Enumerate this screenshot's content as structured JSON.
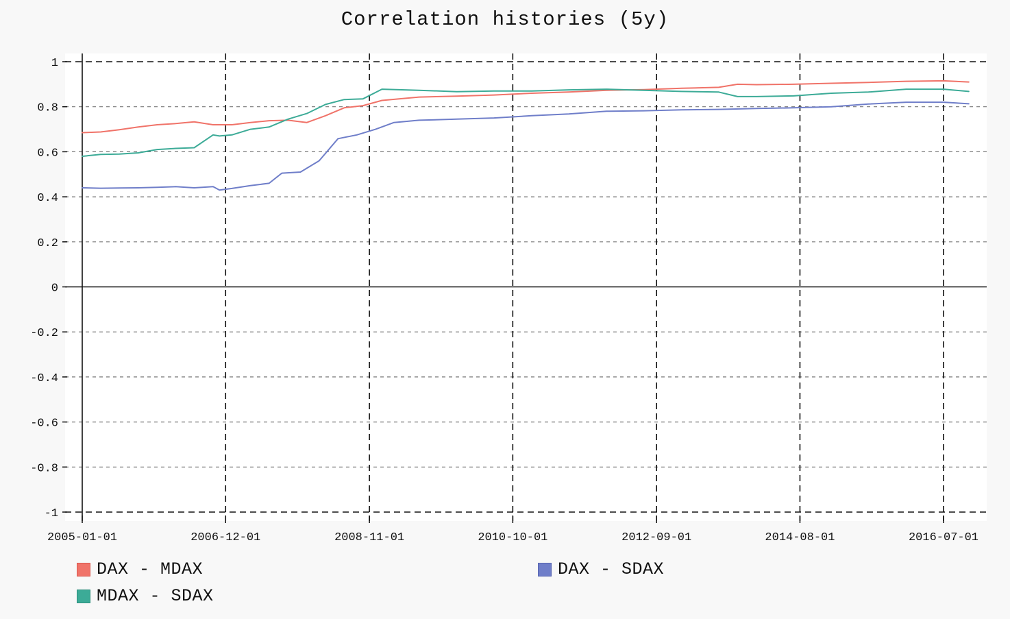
{
  "chart_data": {
    "type": "line",
    "title": "Correlation histories (5y)",
    "xlabel": "",
    "ylabel": "",
    "x_ticks": [
      "2005-01-01",
      "2006-12-01",
      "2008-11-01",
      "2010-10-01",
      "2012-09-01",
      "2014-08-01",
      "2016-07-01"
    ],
    "y_ticks": [
      1,
      0.8,
      0.6,
      0.4,
      0.2,
      0,
      -0.2,
      -0.4,
      -0.6,
      -0.8,
      -1
    ],
    "y_tick_labels": [
      "1",
      "0.8",
      "0.6",
      "0.4",
      "0.2",
      "0",
      "-0.2",
      "-0.4",
      "-0.6",
      "-0.8",
      "-1"
    ],
    "ylim": [
      -1,
      1
    ],
    "xlim": [
      "2005-01-01",
      "2016-11-01"
    ],
    "grid": true,
    "legend_position": "bottom",
    "series": [
      {
        "name": "DAX - MDAX",
        "color": "#f07369",
        "points": [
          [
            "2005-01-01",
            0.685
          ],
          [
            "2005-04-01",
            0.688
          ],
          [
            "2005-07-01",
            0.698
          ],
          [
            "2005-10-01",
            0.71
          ],
          [
            "2006-01-01",
            0.72
          ],
          [
            "2006-04-01",
            0.725
          ],
          [
            "2006-07-01",
            0.733
          ],
          [
            "2006-10-01",
            0.72
          ],
          [
            "2007-01-01",
            0.72
          ],
          [
            "2007-04-01",
            0.73
          ],
          [
            "2007-07-01",
            0.738
          ],
          [
            "2007-10-01",
            0.74
          ],
          [
            "2008-01-01",
            0.73
          ],
          [
            "2008-04-01",
            0.76
          ],
          [
            "2008-07-01",
            0.795
          ],
          [
            "2008-10-01",
            0.805
          ],
          [
            "2009-01-01",
            0.828
          ],
          [
            "2009-07-01",
            0.843
          ],
          [
            "2010-01-01",
            0.847
          ],
          [
            "2010-07-01",
            0.852
          ],
          [
            "2011-01-01",
            0.86
          ],
          [
            "2011-07-01",
            0.865
          ],
          [
            "2012-01-01",
            0.873
          ],
          [
            "2012-07-01",
            0.876
          ],
          [
            "2013-01-01",
            0.882
          ],
          [
            "2013-07-01",
            0.886
          ],
          [
            "2013-10-01",
            0.9
          ],
          [
            "2014-01-01",
            0.898
          ],
          [
            "2014-07-01",
            0.9
          ],
          [
            "2015-01-01",
            0.904
          ],
          [
            "2015-07-01",
            0.908
          ],
          [
            "2016-01-01",
            0.913
          ],
          [
            "2016-07-01",
            0.915
          ],
          [
            "2016-11-01",
            0.91
          ]
        ]
      },
      {
        "name": "DAX - SDAX",
        "color": "#6f7ec9",
        "points": [
          [
            "2005-01-01",
            0.44
          ],
          [
            "2005-04-01",
            0.438
          ],
          [
            "2005-07-01",
            0.439
          ],
          [
            "2005-10-01",
            0.44
          ],
          [
            "2006-01-01",
            0.442
          ],
          [
            "2006-04-01",
            0.445
          ],
          [
            "2006-07-01",
            0.44
          ],
          [
            "2006-10-01",
            0.445
          ],
          [
            "2006-11-01",
            0.43
          ],
          [
            "2007-01-01",
            0.437
          ],
          [
            "2007-04-01",
            0.45
          ],
          [
            "2007-07-01",
            0.46
          ],
          [
            "2007-09-01",
            0.505
          ],
          [
            "2007-12-01",
            0.51
          ],
          [
            "2008-03-01",
            0.56
          ],
          [
            "2008-06-01",
            0.658
          ],
          [
            "2008-09-01",
            0.675
          ],
          [
            "2008-12-01",
            0.7
          ],
          [
            "2009-03-01",
            0.73
          ],
          [
            "2009-07-01",
            0.74
          ],
          [
            "2010-01-01",
            0.745
          ],
          [
            "2010-07-01",
            0.75
          ],
          [
            "2011-01-01",
            0.76
          ],
          [
            "2011-07-01",
            0.768
          ],
          [
            "2012-01-01",
            0.78
          ],
          [
            "2012-07-01",
            0.782
          ],
          [
            "2013-01-01",
            0.786
          ],
          [
            "2013-07-01",
            0.788
          ],
          [
            "2014-01-01",
            0.792
          ],
          [
            "2014-07-01",
            0.795
          ],
          [
            "2015-01-01",
            0.8
          ],
          [
            "2015-07-01",
            0.812
          ],
          [
            "2016-01-01",
            0.82
          ],
          [
            "2016-07-01",
            0.82
          ],
          [
            "2016-11-01",
            0.813
          ]
        ]
      },
      {
        "name": "MDAX - SDAX",
        "color": "#3cab97",
        "points": [
          [
            "2005-01-01",
            0.58
          ],
          [
            "2005-04-01",
            0.588
          ],
          [
            "2005-07-01",
            0.59
          ],
          [
            "2005-10-01",
            0.595
          ],
          [
            "2006-01-01",
            0.61
          ],
          [
            "2006-04-01",
            0.615
          ],
          [
            "2006-07-01",
            0.618
          ],
          [
            "2006-10-01",
            0.675
          ],
          [
            "2006-11-01",
            0.67
          ],
          [
            "2007-01-01",
            0.675
          ],
          [
            "2007-04-01",
            0.7
          ],
          [
            "2007-07-01",
            0.71
          ],
          [
            "2007-10-01",
            0.745
          ],
          [
            "2008-01-01",
            0.77
          ],
          [
            "2008-04-01",
            0.81
          ],
          [
            "2008-07-01",
            0.832
          ],
          [
            "2008-10-01",
            0.835
          ],
          [
            "2009-01-01",
            0.878
          ],
          [
            "2009-07-01",
            0.873
          ],
          [
            "2010-01-01",
            0.867
          ],
          [
            "2010-07-01",
            0.87
          ],
          [
            "2011-01-01",
            0.87
          ],
          [
            "2011-07-01",
            0.875
          ],
          [
            "2012-01-01",
            0.878
          ],
          [
            "2012-07-01",
            0.873
          ],
          [
            "2013-01-01",
            0.868
          ],
          [
            "2013-07-01",
            0.865
          ],
          [
            "2013-10-01",
            0.845
          ],
          [
            "2014-01-01",
            0.845
          ],
          [
            "2014-07-01",
            0.848
          ],
          [
            "2015-01-01",
            0.86
          ],
          [
            "2015-07-01",
            0.865
          ],
          [
            "2016-01-01",
            0.878
          ],
          [
            "2016-07-01",
            0.878
          ],
          [
            "2016-11-01",
            0.868
          ]
        ]
      }
    ]
  }
}
